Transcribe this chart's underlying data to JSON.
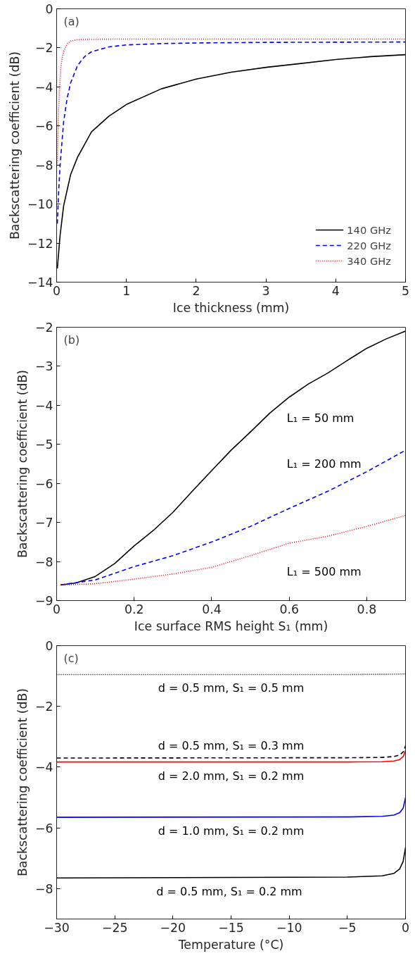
{
  "chart_data": [
    {
      "type": "line",
      "annotations": [
        "(a)"
      ],
      "xlabel": "Ice thickness (mm)",
      "ylabel": "Backscattering coefficient (dB)",
      "xlim": [
        0,
        5
      ],
      "ylim": [
        -14,
        0
      ],
      "xticks": [
        0,
        1,
        2,
        3,
        4,
        5
      ],
      "yticks": [
        -14,
        -12,
        -10,
        -8,
        -6,
        -4,
        -2,
        0
      ],
      "grid": false,
      "legend": "bottom right",
      "series": [
        {
          "name": "140 GHz",
          "color": "#000000",
          "line_style": "solid",
          "x": [
            0.01,
            0.05,
            0.1,
            0.2,
            0.3,
            0.5,
            0.75,
            1,
            1.5,
            2,
            2.5,
            3,
            3.5,
            4,
            4.5,
            5
          ],
          "values": [
            -13.3,
            -11.6,
            -10.1,
            -8.5,
            -7.6,
            -6.3,
            -5.5,
            -4.9,
            -4.1,
            -3.6,
            -3.25,
            -3.0,
            -2.8,
            -2.6,
            -2.45,
            -2.35
          ]
        },
        {
          "name": "220 GHz",
          "color": "#0000ff",
          "line_style": "dashed",
          "x": [
            0.01,
            0.03,
            0.05,
            0.1,
            0.15,
            0.2,
            0.3,
            0.4,
            0.5,
            0.75,
            1,
            1.5,
            2,
            3,
            4,
            5
          ],
          "values": [
            -11,
            -9.3,
            -8,
            -5.8,
            -4.6,
            -3.8,
            -2.9,
            -2.45,
            -2.2,
            -1.95,
            -1.85,
            -1.78,
            -1.75,
            -1.72,
            -1.71,
            -1.7
          ]
        },
        {
          "name": "340 GHz",
          "color": "#ff0000",
          "line_style": "dotted",
          "x": [
            0.01,
            0.02,
            0.03,
            0.045,
            0.06,
            0.08,
            0.1,
            0.15,
            0.2,
            0.3,
            0.5,
            1,
            2,
            5
          ],
          "values": [
            -7.9,
            -6.2,
            -5,
            -3.9,
            -3,
            -2.5,
            -2.2,
            -1.8,
            -1.65,
            -1.58,
            -1.56,
            -1.55,
            -1.55,
            -1.55
          ]
        }
      ]
    },
    {
      "type": "line",
      "annotations": [
        "(b)"
      ],
      "xlabel": "Ice surface RMS height S₁ (mm)",
      "ylabel": "Backscattering coefficient (dB)",
      "xlim": [
        0,
        0.9
      ],
      "ylim": [
        -9,
        -2
      ],
      "xticks": [
        0,
        0.2,
        0.4,
        0.6,
        0.8
      ],
      "yticks": [
        -9,
        -8,
        -7,
        -6,
        -5,
        -4,
        -3,
        -2
      ],
      "grid": false,
      "legend": false,
      "series": [
        {
          "name": "L₁ = 50 mm",
          "color": "#000000",
          "line_style": "solid",
          "x": [
            0.01,
            0.05,
            0.1,
            0.15,
            0.2,
            0.25,
            0.3,
            0.35,
            0.4,
            0.45,
            0.5,
            0.55,
            0.6,
            0.65,
            0.7,
            0.75,
            0.8,
            0.85,
            0.9
          ],
          "values": [
            -8.6,
            -8.55,
            -8.38,
            -8.05,
            -7.6,
            -7.2,
            -6.74,
            -6.2,
            -5.67,
            -5.15,
            -4.68,
            -4.2,
            -3.79,
            -3.45,
            -3.17,
            -2.85,
            -2.54,
            -2.3,
            -2.1
          ]
        },
        {
          "name": "L₁ = 200 mm",
          "color": "#0000ff",
          "line_style": "dashed",
          "x": [
            0.01,
            0.1,
            0.2,
            0.3,
            0.4,
            0.5,
            0.6,
            0.7,
            0.8,
            0.9
          ],
          "values": [
            -8.6,
            -8.47,
            -8.13,
            -7.85,
            -7.5,
            -7.1,
            -6.64,
            -6.2,
            -5.7,
            -5.15
          ]
        },
        {
          "name": "L₁ = 500 mm",
          "color": "#ff0000",
          "line_style": "dotted",
          "x": [
            0.01,
            0.1,
            0.2,
            0.3,
            0.4,
            0.5,
            0.6,
            0.7,
            0.8,
            0.9
          ],
          "values": [
            -8.6,
            -8.57,
            -8.45,
            -8.32,
            -8.15,
            -7.85,
            -7.53,
            -7.35,
            -7.1,
            -6.82
          ]
        }
      ]
    },
    {
      "type": "line",
      "annotations": [
        "(c)"
      ],
      "xlabel": "Temperature (°C)",
      "ylabel": "Backscattering coefficient (dB)",
      "xlim": [
        -30,
        0
      ],
      "ylim": [
        -9,
        0
      ],
      "xticks": [
        -30,
        -25,
        -20,
        -15,
        -10,
        -5,
        0
      ],
      "yticks": [
        -8,
        -6,
        -4,
        -2,
        0
      ],
      "grid": false,
      "legend": false,
      "series": [
        {
          "name": "d = 0.5 mm, S₁ = 0.5 mm",
          "color": "#000000",
          "line_style": "dotted",
          "x": [
            -30,
            -5,
            -1,
            0
          ],
          "values": [
            -0.95,
            -0.95,
            -0.94,
            -0.93
          ]
        },
        {
          "name": "d = 0.5 mm, S₁ = 0.3 mm",
          "color": "#000000",
          "line_style": "dashed",
          "x": [
            -30,
            -5,
            -2,
            -1,
            -0.5,
            -0.2,
            0
          ],
          "values": [
            -3.7,
            -3.69,
            -3.68,
            -3.65,
            -3.6,
            -3.5,
            -3.3
          ]
        },
        {
          "name": "d = 2.0 mm, S₁ = 0.2 mm",
          "color": "#ff0000",
          "line_style": "solid",
          "x": [
            -30,
            -5,
            -2,
            -1,
            -0.5,
            -0.2,
            0
          ],
          "values": [
            -3.83,
            -3.83,
            -3.82,
            -3.8,
            -3.75,
            -3.65,
            -3.45
          ]
        },
        {
          "name": "d = 1.0 mm, S₁ = 0.2 mm",
          "color": "#0000ff",
          "line_style": "solid",
          "x": [
            -30,
            -5,
            -2,
            -1,
            -0.5,
            -0.2,
            0
          ],
          "values": [
            -5.65,
            -5.64,
            -5.62,
            -5.58,
            -5.5,
            -5.35,
            -5.0
          ]
        },
        {
          "name": "d = 0.5 mm,  S₁ = 0.2 mm",
          "color": "#000000",
          "line_style": "solid",
          "x": [
            -30,
            -5,
            -2,
            -1,
            -0.5,
            -0.2,
            0
          ],
          "values": [
            -7.65,
            -7.62,
            -7.58,
            -7.5,
            -7.35,
            -7.1,
            -6.65
          ]
        }
      ]
    }
  ]
}
